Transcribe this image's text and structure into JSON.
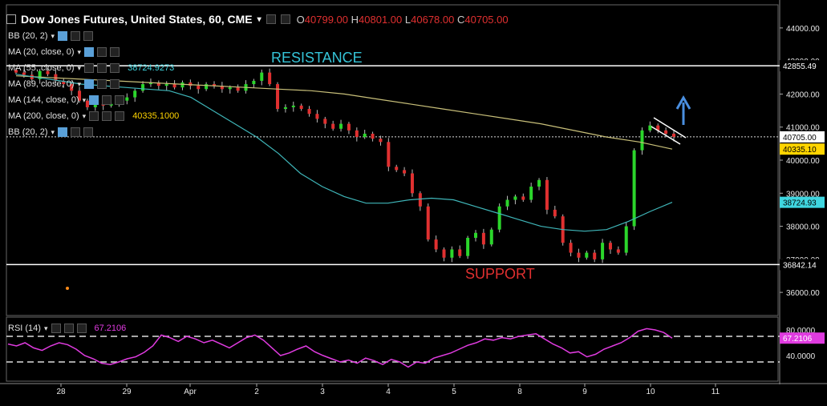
{
  "header": {
    "symbol_title": "Dow Jones Futures, United States, 60, CME",
    "open_label": "O",
    "open_value": "40799.00",
    "high_label": "H",
    "high_value": "40801.00",
    "low_label": "L",
    "low_value": "40678.00",
    "close_label": "C",
    "close_value": "40705.00"
  },
  "indicators": [
    {
      "label": "BB (20, 2)",
      "value": ""
    },
    {
      "label": "MA (20, close, 0)",
      "value": ""
    },
    {
      "label": "MA (55, close, 0)",
      "value": "38724.9273"
    },
    {
      "label": "MA (89, close, 0)",
      "value": ""
    },
    {
      "label": "MA (144, close, 0)",
      "value": ""
    },
    {
      "label": "MA (200, close, 0)",
      "value": "40335.1000"
    },
    {
      "label": "BB (20, 2)",
      "value": ""
    }
  ],
  "annotations": {
    "resistance": "RESISTANCE",
    "support": "SUPPORT"
  },
  "rsi": {
    "label": "RSI (14)",
    "value": "67.2106",
    "tag": "67.2106"
  },
  "colors": {
    "background": "#000000",
    "up": "#2bd62b",
    "down": "#e03030",
    "ma55": "#3fb6b9",
    "ma200": "#c9c07a",
    "rsi": "#e03be0",
    "resistance_text": "#35c4d8",
    "support_text": "#e03030",
    "close_tag_bg": "#ffffff",
    "ma200_tag_bg": "#ffd400",
    "ma55_tag_bg": "#3fd6e0"
  },
  "chart_data": [
    {
      "type": "candlestick",
      "y_ticks": [
        "44000.00",
        "43000.00",
        "42000.00",
        "41000.00",
        "40000.00",
        "39000.00",
        "38000.00",
        "37000.00",
        "36000.00"
      ],
      "ylim": [
        35300,
        44700
      ],
      "x_ticks": [
        "28",
        "29",
        "Apr",
        "2",
        "3",
        "4",
        "5",
        "8",
        "9",
        "10",
        "11"
      ],
      "levels": {
        "resistance": 42855.49,
        "support": 36842.14,
        "last_close": 40705.0
      },
      "price_tags": [
        {
          "value": 42855.49,
          "text": "42855.49",
          "kind": "line"
        },
        {
          "value": 40705.0,
          "text": "40705.00",
          "kind": "close"
        },
        {
          "value": 40335.1,
          "text": "40335.10",
          "kind": "ma200"
        },
        {
          "value": 38724.93,
          "text": "38724.93",
          "kind": "ma55"
        },
        {
          "value": 36842.14,
          "text": "36842.14",
          "kind": "line"
        }
      ],
      "close_series": [
        42650,
        42580,
        42450,
        42700,
        42600,
        42400,
        42300,
        42100,
        41800,
        41600,
        41700,
        41650,
        41700,
        41800,
        41900,
        42100,
        42300,
        42350,
        42250,
        42300,
        42200,
        42350,
        42250,
        42150,
        42300,
        42250,
        42150,
        42200,
        42100,
        42300,
        42400,
        42650,
        42300,
        41550,
        41600,
        41650,
        41550,
        41400,
        41250,
        41100,
        40950,
        41100,
        40900,
        40700,
        40800,
        40650,
        40550,
        39800,
        39700,
        39600,
        39000,
        38600,
        37600,
        37300,
        37050,
        37300,
        37100,
        37650,
        37800,
        37450,
        37900,
        38600,
        38800,
        38900,
        38800,
        39200,
        39400,
        38500,
        38300,
        37500,
        37200,
        37050,
        37200,
        37000,
        37500,
        37300,
        37200,
        38000,
        40300,
        40900,
        41050,
        40900,
        40800,
        40705
      ],
      "ma55_series": [
        42600,
        42500,
        42400,
        42300,
        42250,
        42200,
        42150,
        42100,
        41900,
        41500,
        41100,
        40700,
        40200,
        39600,
        39200,
        38900,
        38700,
        38700,
        38800,
        38850,
        38800,
        38600,
        38400,
        38200,
        38000,
        37900,
        37850,
        37900,
        38150,
        38450,
        38724.93
      ],
      "ma200_series": [
        42550,
        42500,
        42450,
        42400,
        42350,
        42300,
        42250,
        42200,
        42150,
        42100,
        42000,
        41850,
        41700,
        41550,
        41400,
        41250,
        41100,
        40900,
        40700,
        40550,
        40335.1
      ],
      "x_labels": [
        "28",
        "29",
        "Apr",
        "2",
        "3",
        "4",
        "5",
        "8",
        "9",
        "10",
        "11"
      ]
    },
    {
      "type": "line",
      "name": "RSI (14)",
      "y_ticks": [
        "80.0000",
        "40.0000"
      ],
      "ylim": [
        0,
        100
      ],
      "levels": [
        70,
        30
      ],
      "values": [
        58,
        55,
        60,
        52,
        48,
        55,
        60,
        57,
        50,
        40,
        35,
        28,
        26,
        30,
        35,
        38,
        45,
        55,
        72,
        68,
        62,
        70,
        66,
        60,
        64,
        58,
        52,
        60,
        68,
        72,
        64,
        52,
        40,
        44,
        50,
        55,
        46,
        40,
        35,
        30,
        33,
        28,
        36,
        32,
        26,
        34,
        30,
        22,
        30,
        28,
        36,
        40,
        44,
        50,
        56,
        60,
        66,
        64,
        68,
        66,
        70,
        72,
        74,
        66,
        58,
        52,
        44,
        46,
        38,
        42,
        50,
        55,
        60,
        68,
        78,
        82,
        80,
        76,
        67.2106
      ]
    }
  ]
}
